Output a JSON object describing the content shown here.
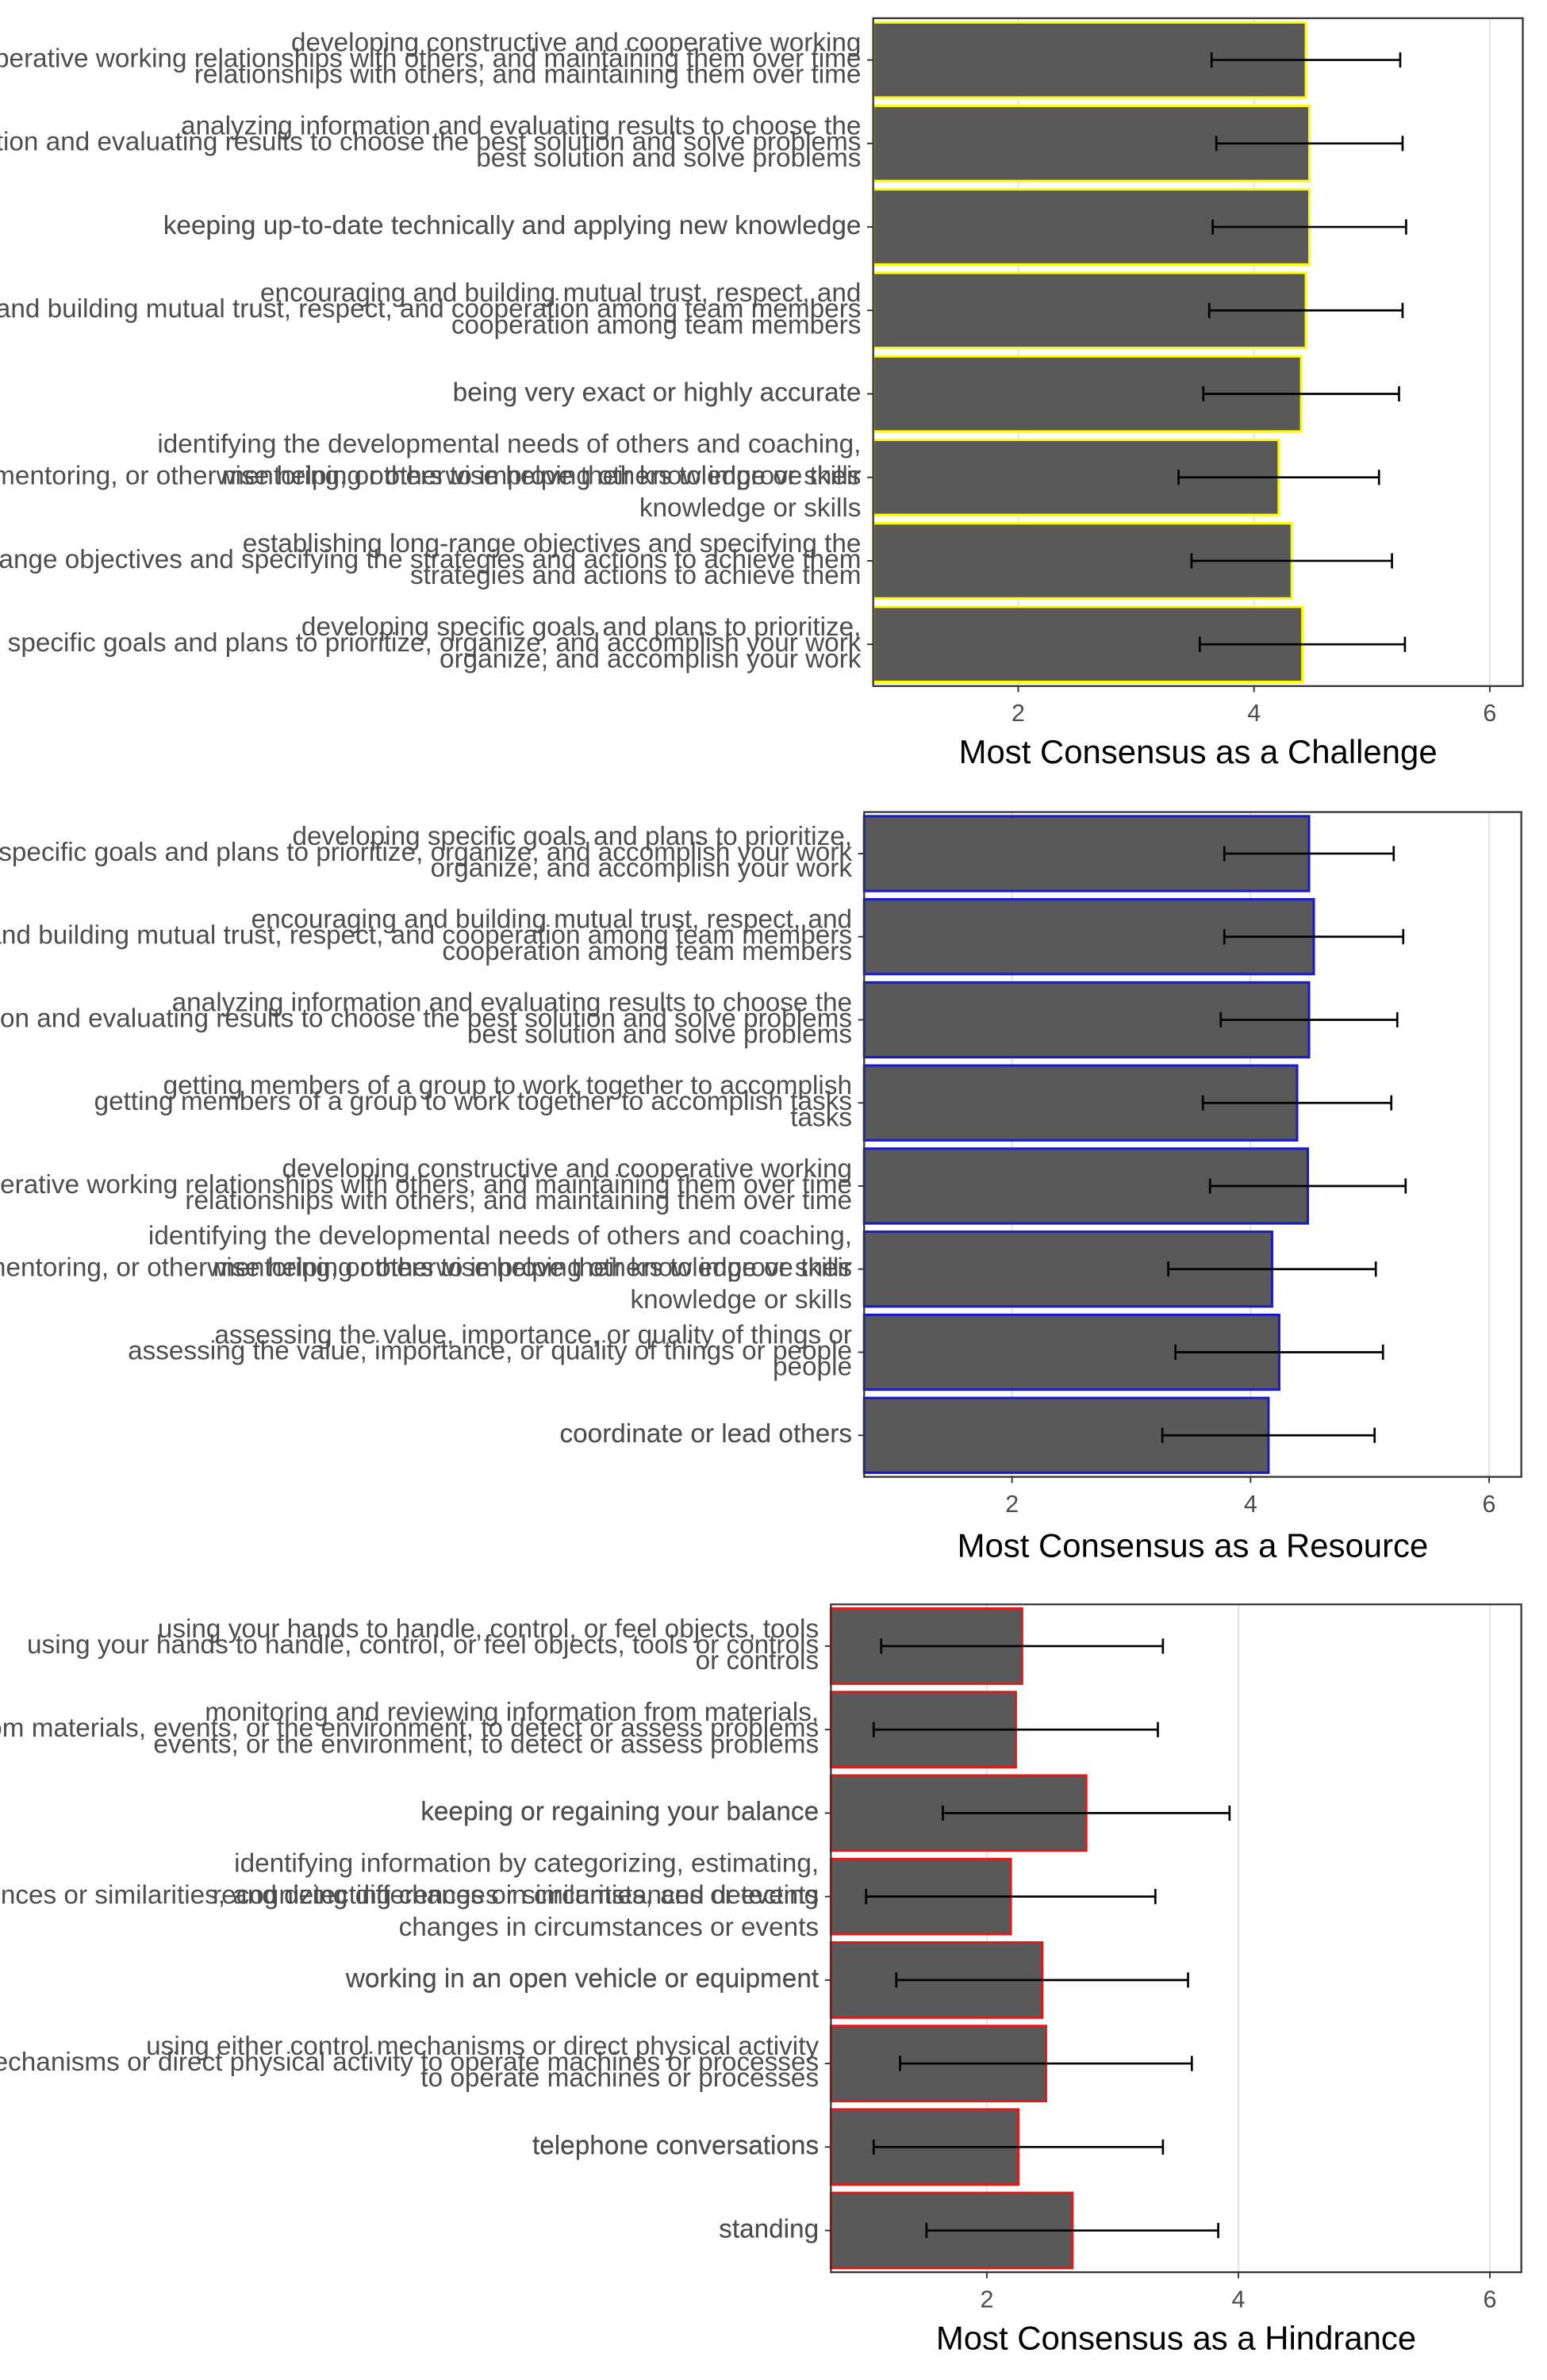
{
  "chart_data": [
    {
      "type": "bar",
      "orientation": "horizontal",
      "categories": [
        "developing constructive and cooperative working\nrelationships with others, and maintaining them over time",
        "analyzing information and evaluating results to choose the\nbest solution and solve problems",
        "keeping up-to-date technically and applying new knowledge",
        "encouraging and building mutual trust, respect, and\ncooperation among team members",
        "being very exact or highly accurate",
        "identifying the developmental needs of others and coaching,\nmentoring, or otherwise helping others to improve their\nknowledge or skills",
        "establishing long-range objectives and specifying the\nstrategies and actions to achieve them",
        "developing specific goals and plans to prioritize,\norganize, and accomplish your work"
      ],
      "values": [
        4.44,
        4.47,
        4.47,
        4.44,
        4.4,
        4.21,
        4.32,
        4.41
      ],
      "errors": [
        0.8,
        0.79,
        0.82,
        0.82,
        0.83,
        0.85,
        0.85,
        0.87
      ],
      "color": "#595959",
      "edge_color": "#ffff00",
      "xlim": [
        0.77,
        6.28
      ],
      "xticks": [
        2,
        4,
        6
      ],
      "grid": true,
      "x_label": "Most Consensus as a Challenge"
    },
    {
      "type": "bar",
      "orientation": "horizontal",
      "categories": [
        "developing specific goals and plans to prioritize,\norganize, and accomplish your work",
        "encouraging and building mutual trust, respect, and\ncooperation among team members",
        "analyzing information and evaluating results to choose the\nbest solution and solve problems",
        "getting members of a group to work together to accomplish\ntasks",
        "developing constructive and cooperative working\nrelationships with others, and maintaining them over time",
        "identifying the developmental needs of others and coaching,\nmentoring, or otherwise helping others to improve their\nknowledge or skills",
        "assessing the value, importance, or quality of things or\npeople",
        "coordinate or lead others"
      ],
      "values": [
        4.49,
        4.53,
        4.49,
        4.39,
        4.48,
        4.18,
        4.24,
        4.15
      ],
      "errors": [
        0.71,
        0.75,
        0.74,
        0.79,
        0.82,
        0.87,
        0.87,
        0.89
      ],
      "color": "#595959",
      "edge_color": "#1a1acc",
      "xlim": [
        0.76,
        6.27
      ],
      "xticks": [
        2,
        4,
        6
      ],
      "grid": true,
      "x_label": "Most Consensus as a Resource"
    },
    {
      "type": "bar",
      "orientation": "horizontal",
      "categories": [
        "using your hands to handle, control, or feel objects, tools\nor controls",
        "monitoring and reviewing information from materials,\nevents, or the environment, to detect or assess problems",
        "keeping or regaining your balance",
        "identifying information by categorizing, estimating,\nrecognizing differences or similarities, and detecting\nchanges in circumstances or events",
        "working in an open vehicle or equipment",
        "using either control mechanisms or direct physical activity\nto operate machines or processes",
        "telephone conversations",
        "standing"
      ],
      "values": [
        2.28,
        2.23,
        2.79,
        2.19,
        2.44,
        2.47,
        2.25,
        2.68
      ],
      "errors": [
        1.12,
        1.13,
        1.14,
        1.15,
        1.16,
        1.16,
        1.15,
        1.16
      ],
      "color": "#595959",
      "edge_color": "#e01a1a",
      "xlim": [
        0.76,
        6.25
      ],
      "xticks": [
        2,
        4,
        6
      ],
      "grid": true,
      "x_label": "Most Consensus as a Hindrance"
    }
  ]
}
